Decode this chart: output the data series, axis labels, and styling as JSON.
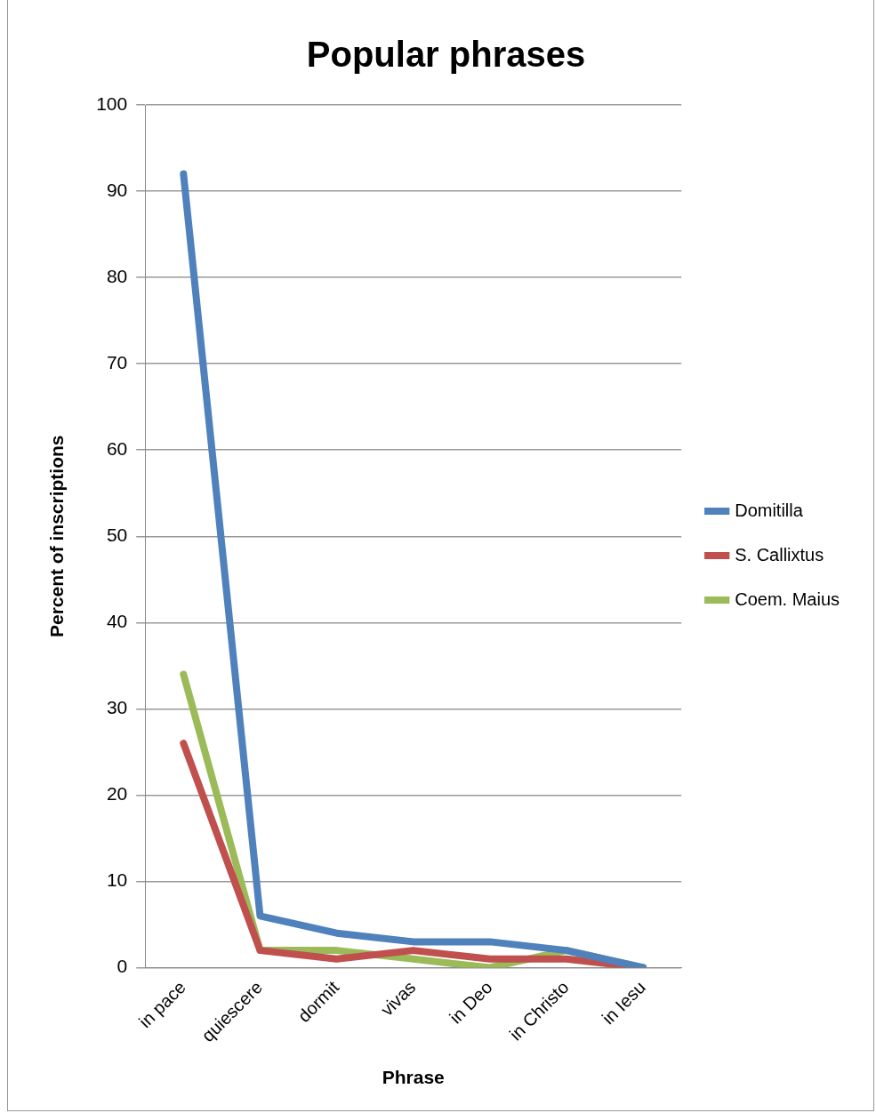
{
  "chart_data": {
    "type": "line",
    "title": "Popular phrases",
    "xlabel": "Phrase",
    "ylabel": "Percent of inscriptions",
    "categories": [
      "in pace",
      "quiescere",
      "dormit",
      "vivas",
      "in Deo",
      "in Christo",
      "in Iesu"
    ],
    "series": [
      {
        "name": "Domitilla",
        "color": "#4f81bd",
        "values": [
          92,
          6,
          4,
          3,
          3,
          2,
          0
        ]
      },
      {
        "name": "S. Callixtus",
        "color": "#c0504d",
        "values": [
          26,
          2,
          1,
          2,
          1,
          1,
          0
        ]
      },
      {
        "name": "Coem. Maius",
        "color": "#9bbb59",
        "values": [
          34,
          2,
          2,
          1,
          0,
          2,
          0
        ]
      }
    ],
    "ylim": [
      0,
      100
    ],
    "yticks": [
      0,
      10,
      20,
      30,
      40,
      50,
      60,
      70,
      80,
      90,
      100
    ],
    "grid": "y",
    "legend": "right",
    "marker": "none",
    "line_style": "solid"
  }
}
